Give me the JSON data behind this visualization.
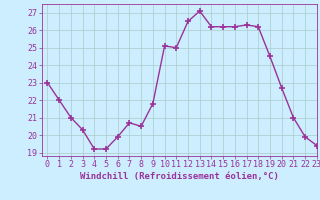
{
  "x": [
    0,
    1,
    2,
    3,
    4,
    5,
    6,
    7,
    8,
    9,
    10,
    11,
    12,
    13,
    14,
    15,
    16,
    17,
    18,
    19,
    20,
    21,
    22,
    23
  ],
  "y": [
    23,
    22,
    21,
    20.3,
    19.2,
    19.2,
    19.9,
    20.7,
    20.5,
    21.8,
    25.1,
    25.0,
    26.5,
    27.1,
    26.2,
    26.2,
    26.2,
    26.3,
    26.2,
    24.5,
    22.7,
    21.0,
    19.9,
    19.4
  ],
  "line_color": "#993399",
  "marker": "+",
  "marker_size": 4,
  "marker_lw": 1.2,
  "line_width": 1.0,
  "bg_color": "#cceeff",
  "grid_color": "#aacccc",
  "xlabel": "Windchill (Refroidissement éolien,°C)",
  "xlabel_color": "#993399",
  "tick_color": "#993399",
  "ylim_min": 18.8,
  "ylim_max": 27.5,
  "xlim_min": -0.5,
  "xlim_max": 23,
  "yticks": [
    19,
    20,
    21,
    22,
    23,
    24,
    25,
    26,
    27
  ],
  "xticks": [
    0,
    1,
    2,
    3,
    4,
    5,
    6,
    7,
    8,
    9,
    10,
    11,
    12,
    13,
    14,
    15,
    16,
    17,
    18,
    19,
    20,
    21,
    22,
    23
  ],
  "tick_fontsize": 6,
  "xlabel_fontsize": 6.5
}
